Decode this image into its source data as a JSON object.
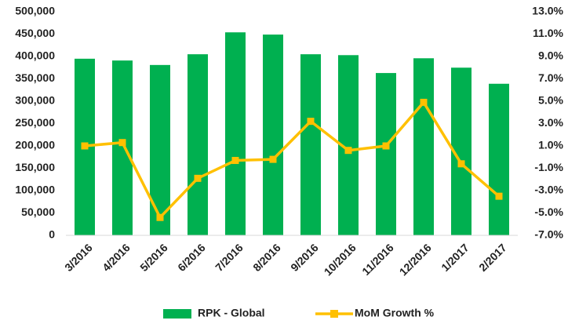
{
  "chart_data": {
    "type": "bar_line",
    "categories": [
      "3/2016",
      "4/2016",
      "5/2016",
      "6/2016",
      "7/2016",
      "8/2016",
      "9/2016",
      "10/2016",
      "11/2016",
      "12/2016",
      "1/2017",
      "2/2017"
    ],
    "series": [
      {
        "name": "RPK - Global",
        "type": "bar",
        "color": "#00b050",
        "values": [
          395000,
          391000,
          381000,
          405000,
          454000,
          449000,
          405000,
          403000,
          363000,
          396000,
          375000,
          339000
        ]
      },
      {
        "name": "MoM Growth %",
        "type": "line",
        "axis": "y2",
        "color": "#ffc000",
        "values": [
          1.0,
          1.3,
          -5.4,
          -1.9,
          -0.3,
          -0.2,
          3.2,
          0.6,
          1.0,
          4.9,
          -0.6,
          -3.5
        ]
      }
    ],
    "ylim": [
      0,
      500000
    ],
    "yticks": [
      0,
      {
        "value": 50000,
        "label": "50,000"
      },
      {
        "value": 100000,
        "label": "100,000"
      },
      {
        "value": 150000,
        "label": "150,000"
      },
      {
        "value": 200000,
        "label": "200,000"
      },
      {
        "value": 250000,
        "label": "250,000"
      },
      {
        "value": 300000,
        "label": "300,000"
      },
      {
        "value": 350000,
        "label": "350,000"
      },
      {
        "value": 400000,
        "label": "400,000"
      },
      {
        "value": 450000,
        "label": "450,000"
      },
      {
        "value": 500000,
        "label": "500,000"
      }
    ],
    "y2lim": [
      -7,
      13
    ],
    "y2ticks": [
      {
        "value": -7,
        "label": "-7.0%"
      },
      {
        "value": -5,
        "label": "-5.0%"
      },
      {
        "value": -3,
        "label": "-3.0%"
      },
      {
        "value": -1,
        "label": "-1.0%"
      },
      {
        "value": 1,
        "label": "1.0%"
      },
      {
        "value": 3,
        "label": "3.0%"
      },
      {
        "value": 5,
        "label": "5.0%"
      },
      {
        "value": 7,
        "label": "7.0%"
      },
      {
        "value": 9,
        "label": "9.0%"
      },
      {
        "value": 11,
        "label": "11.0%"
      },
      {
        "value": 13,
        "label": "13.0%"
      }
    ],
    "grid": false,
    "legend": "bottom"
  }
}
